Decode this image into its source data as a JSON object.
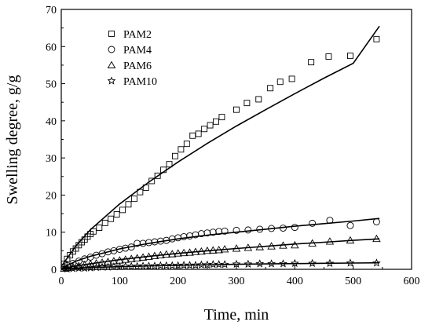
{
  "chart_data": {
    "type": "scatter",
    "xlabel": "Time, min",
    "ylabel": "Swelling degree, g/g",
    "xlim": [
      0,
      600
    ],
    "ylim": [
      0,
      70
    ],
    "xticks": [
      0,
      100,
      200,
      300,
      400,
      500,
      600
    ],
    "yticks": [
      0,
      10,
      20,
      30,
      40,
      50,
      60,
      70
    ],
    "grid": false,
    "legend_position": "top-left",
    "series": [
      {
        "name": "PAM2",
        "marker": "square",
        "points": [
          [
            5,
            1.5
          ],
          [
            10,
            2.8
          ],
          [
            15,
            3.8
          ],
          [
            20,
            4.8
          ],
          [
            25,
            5.6
          ],
          [
            30,
            6.5
          ],
          [
            35,
            7.3
          ],
          [
            40,
            8.0
          ],
          [
            45,
            8.8
          ],
          [
            50,
            9.5
          ],
          [
            55,
            10.2
          ],
          [
            65,
            11.2
          ],
          [
            75,
            12.5
          ],
          [
            85,
            13.6
          ],
          [
            95,
            14.8
          ],
          [
            105,
            16.0
          ],
          [
            115,
            17.5
          ],
          [
            125,
            19.0
          ],
          [
            135,
            20.8
          ],
          [
            145,
            22.0
          ],
          [
            155,
            23.8
          ],
          [
            165,
            25.2
          ],
          [
            175,
            26.8
          ],
          [
            185,
            28.3
          ],
          [
            195,
            30.5
          ],
          [
            205,
            32.3
          ],
          [
            215,
            33.8
          ],
          [
            225,
            36.0
          ],
          [
            235,
            36.5
          ],
          [
            245,
            37.8
          ],
          [
            255,
            38.8
          ],
          [
            265,
            39.8
          ],
          [
            275,
            41.0
          ],
          [
            300,
            43.0
          ],
          [
            318,
            44.8
          ],
          [
            338,
            45.8
          ],
          [
            358,
            48.8
          ],
          [
            375,
            50.5
          ],
          [
            395,
            51.3
          ],
          [
            428,
            55.8
          ],
          [
            458,
            57.3
          ],
          [
            495,
            57.5
          ],
          [
            540,
            62.0
          ]
        ],
        "fit": [
          [
            1,
            1.0
          ],
          [
            25,
            6.3
          ],
          [
            50,
            10.7
          ],
          [
            100,
            17.6
          ],
          [
            150,
            23.5
          ],
          [
            200,
            28.9
          ],
          [
            250,
            33.9
          ],
          [
            300,
            38.6
          ],
          [
            350,
            43.0
          ],
          [
            400,
            47.3
          ],
          [
            450,
            51.5
          ],
          [
            500,
            55.5
          ],
          [
            545,
            65.5
          ]
        ]
      },
      {
        "name": "PAM4",
        "marker": "circle",
        "points": [
          [
            5,
            0.5
          ],
          [
            10,
            1.0
          ],
          [
            20,
            1.6
          ],
          [
            30,
            2.2
          ],
          [
            40,
            2.8
          ],
          [
            50,
            3.3
          ],
          [
            60,
            3.8
          ],
          [
            70,
            4.2
          ],
          [
            80,
            4.7
          ],
          [
            90,
            5.0
          ],
          [
            100,
            5.4
          ],
          [
            110,
            5.7
          ],
          [
            120,
            6.0
          ],
          [
            130,
            7.0
          ],
          [
            140,
            7.0
          ],
          [
            150,
            7.2
          ],
          [
            160,
            7.4
          ],
          [
            170,
            7.6
          ],
          [
            180,
            7.8
          ],
          [
            190,
            8.2
          ],
          [
            200,
            8.5
          ],
          [
            210,
            8.8
          ],
          [
            220,
            9.0
          ],
          [
            230,
            9.3
          ],
          [
            240,
            9.6
          ],
          [
            250,
            9.8
          ],
          [
            260,
            10.0
          ],
          [
            270,
            10.2
          ],
          [
            280,
            10.3
          ],
          [
            300,
            10.5
          ],
          [
            320,
            10.6
          ],
          [
            340,
            10.8
          ],
          [
            360,
            11.0
          ],
          [
            380,
            11.1
          ],
          [
            400,
            11.3
          ],
          [
            430,
            12.4
          ],
          [
            460,
            13.2
          ],
          [
            495,
            11.8
          ],
          [
            540,
            12.8
          ]
        ],
        "fit": [
          [
            1,
            0.3
          ],
          [
            25,
            2.2
          ],
          [
            50,
            3.5
          ],
          [
            100,
            5.5
          ],
          [
            150,
            7.0
          ],
          [
            200,
            8.2
          ],
          [
            250,
            9.2
          ],
          [
            300,
            10.0
          ],
          [
            350,
            10.8
          ],
          [
            400,
            11.6
          ],
          [
            450,
            12.3
          ],
          [
            500,
            13.0
          ],
          [
            545,
            13.7
          ]
        ]
      },
      {
        "name": "PAM6",
        "marker": "triangle",
        "points": [
          [
            5,
            0.2
          ],
          [
            10,
            0.4
          ],
          [
            20,
            0.7
          ],
          [
            30,
            0.9
          ],
          [
            40,
            1.2
          ],
          [
            50,
            1.4
          ],
          [
            60,
            1.6
          ],
          [
            70,
            1.8
          ],
          [
            80,
            2.0
          ],
          [
            90,
            2.2
          ],
          [
            100,
            2.4
          ],
          [
            110,
            2.6
          ],
          [
            120,
            2.8
          ],
          [
            130,
            3.0
          ],
          [
            140,
            3.2
          ],
          [
            150,
            3.4
          ],
          [
            160,
            3.6
          ],
          [
            170,
            3.8
          ],
          [
            180,
            4.0
          ],
          [
            190,
            4.1
          ],
          [
            200,
            4.3
          ],
          [
            210,
            4.4
          ],
          [
            220,
            4.5
          ],
          [
            230,
            4.7
          ],
          [
            240,
            4.8
          ],
          [
            250,
            5.0
          ],
          [
            260,
            5.1
          ],
          [
            270,
            5.2
          ],
          [
            280,
            5.4
          ],
          [
            300,
            5.6
          ],
          [
            320,
            5.8
          ],
          [
            340,
            6.0
          ],
          [
            360,
            6.2
          ],
          [
            380,
            6.4
          ],
          [
            400,
            6.5
          ],
          [
            430,
            7.0
          ],
          [
            460,
            7.5
          ],
          [
            495,
            7.8
          ],
          [
            540,
            8.2
          ]
        ],
        "fit": [
          [
            1,
            0.1
          ],
          [
            25,
            0.9
          ],
          [
            50,
            1.5
          ],
          [
            100,
            2.6
          ],
          [
            150,
            3.5
          ],
          [
            200,
            4.3
          ],
          [
            250,
            5.0
          ],
          [
            300,
            5.6
          ],
          [
            350,
            6.2
          ],
          [
            400,
            6.8
          ],
          [
            450,
            7.3
          ],
          [
            500,
            7.8
          ],
          [
            545,
            8.2
          ]
        ]
      },
      {
        "name": "PAM10",
        "marker": "star",
        "points": [
          [
            10,
            0.1
          ],
          [
            20,
            0.2
          ],
          [
            30,
            0.3
          ],
          [
            40,
            0.3
          ],
          [
            50,
            0.4
          ],
          [
            60,
            0.5
          ],
          [
            70,
            0.6
          ],
          [
            80,
            0.6
          ],
          [
            90,
            0.7
          ],
          [
            100,
            0.7
          ],
          [
            110,
            0.8
          ],
          [
            120,
            0.8
          ],
          [
            130,
            0.8
          ],
          [
            140,
            0.9
          ],
          [
            150,
            0.9
          ],
          [
            160,
            0.9
          ],
          [
            170,
            1.0
          ],
          [
            180,
            1.0
          ],
          [
            190,
            1.0
          ],
          [
            200,
            1.0
          ],
          [
            210,
            1.1
          ],
          [
            220,
            1.1
          ],
          [
            230,
            1.1
          ],
          [
            240,
            1.2
          ],
          [
            250,
            1.2
          ],
          [
            260,
            1.3
          ],
          [
            270,
            1.3
          ],
          [
            280,
            1.3
          ],
          [
            300,
            1.4
          ],
          [
            320,
            1.4
          ],
          [
            340,
            1.5
          ],
          [
            360,
            1.5
          ],
          [
            380,
            1.5
          ],
          [
            400,
            1.6
          ],
          [
            430,
            1.6
          ],
          [
            460,
            1.6
          ],
          [
            495,
            1.7
          ],
          [
            540,
            1.7
          ]
        ],
        "fit": [
          [
            1,
            0.05
          ],
          [
            25,
            0.3
          ],
          [
            50,
            0.5
          ],
          [
            100,
            0.7
          ],
          [
            150,
            0.9
          ],
          [
            200,
            1.1
          ],
          [
            250,
            1.2
          ],
          [
            300,
            1.35
          ],
          [
            350,
            1.45
          ],
          [
            400,
            1.55
          ],
          [
            450,
            1.62
          ],
          [
            500,
            1.7
          ],
          [
            545,
            1.75
          ]
        ]
      }
    ]
  }
}
